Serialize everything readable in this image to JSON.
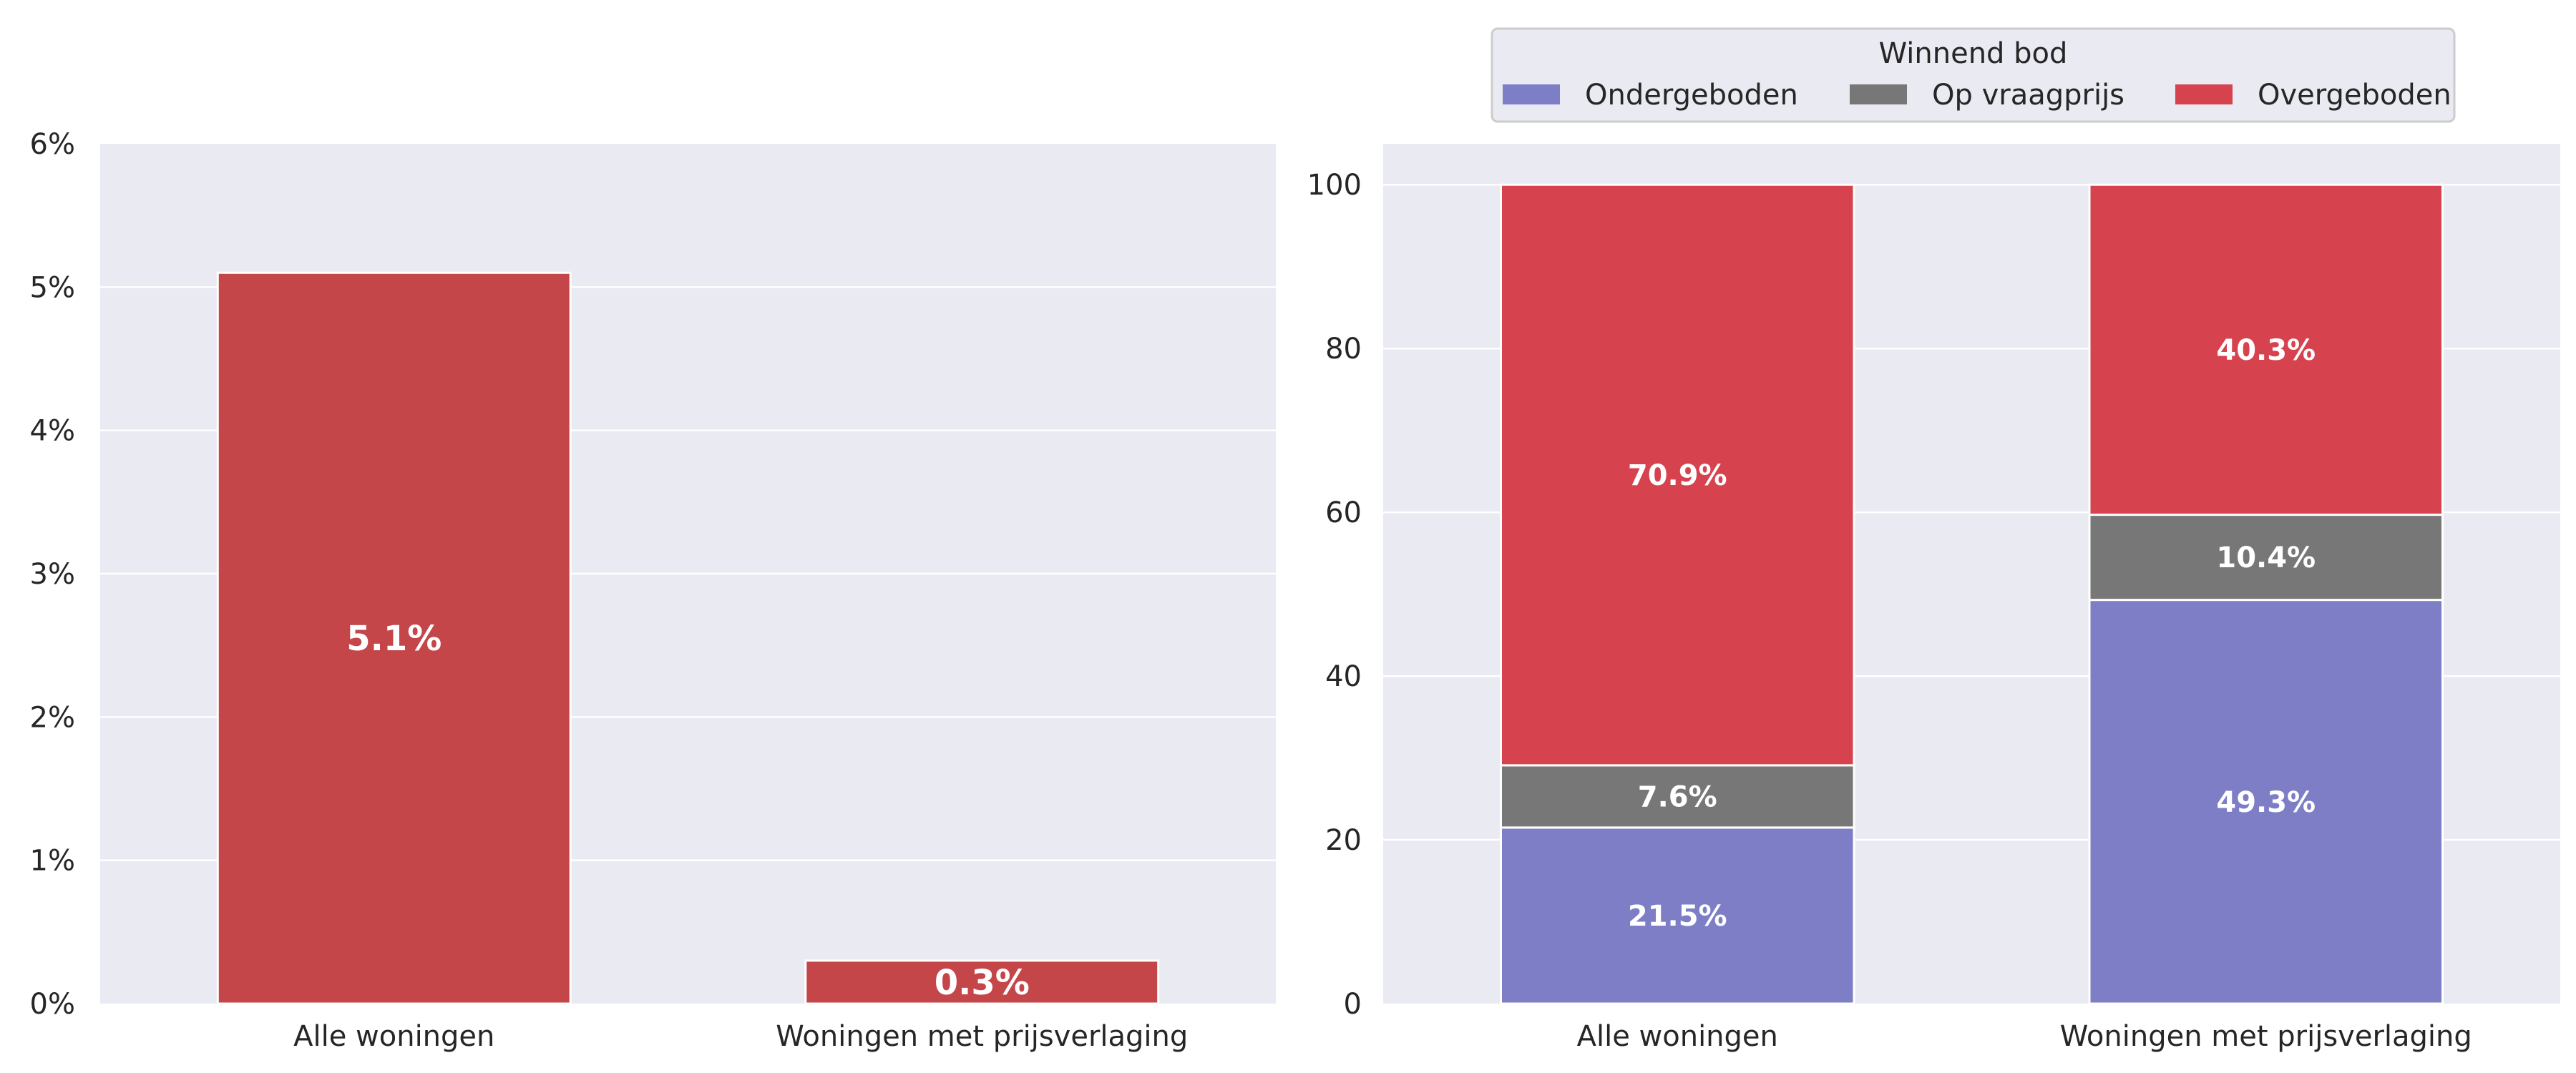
{
  "chart_data": [
    {
      "type": "bar",
      "categories": [
        "Alle woningen",
        "Woningen met prijsverlaging"
      ],
      "values": [
        5.1,
        0.3
      ],
      "value_labels": [
        "5.1%",
        "0.3%"
      ],
      "ylim": [
        0,
        6
      ],
      "yticks": [
        "0%",
        "1%",
        "2%",
        "3%",
        "4%",
        "5%",
        "6%"
      ],
      "grid": true,
      "colors": {
        "bar": "#c44649",
        "background": "#eaeaf2",
        "grid": "#ffffff",
        "label": "#ffffff"
      }
    },
    {
      "type": "bar",
      "stacked": true,
      "categories": [
        "Alle woningen",
        "Woningen met prijsverlaging"
      ],
      "series": [
        {
          "name": "Ondergeboden",
          "values": [
            21.5,
            49.3
          ],
          "labels": [
            "21.5%",
            "49.3%"
          ],
          "color": "#7d7ec6"
        },
        {
          "name": "Op vraagprijs",
          "values": [
            7.6,
            10.4
          ],
          "labels": [
            "7.6%",
            "10.4%"
          ],
          "color": "#777777"
        },
        {
          "name": "Overgeboden",
          "values": [
            70.9,
            40.3
          ],
          "labels": [
            "70.9%",
            "40.3%"
          ],
          "color": "#d6434f"
        }
      ],
      "ylim": [
        0,
        105
      ],
      "yticks": [
        "0",
        "20",
        "40",
        "60",
        "80",
        "100"
      ],
      "grid": true,
      "legend": {
        "title": "Winnend bod",
        "placement": "top-center"
      }
    }
  ]
}
